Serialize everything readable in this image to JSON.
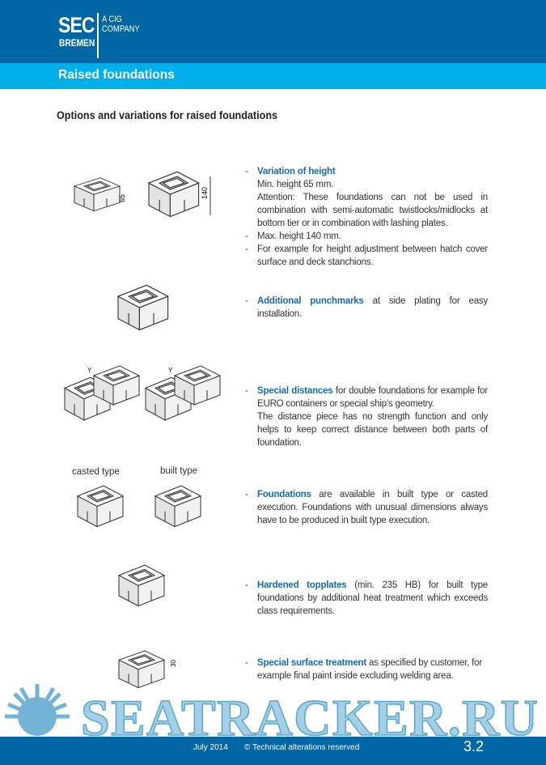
{
  "header": {
    "logo_sec": "SEC",
    "logo_bremen": "BREMEN",
    "logo_cig": [
      "A CIG",
      "COMPANY"
    ],
    "section_title": "Raised foundations"
  },
  "page_title": "Options and variations for raised foundations",
  "figures": {
    "dim_65": "65",
    "dim_140": "140",
    "dim_y": "Y",
    "dim_30": "30",
    "casted_label": "casted type",
    "built_label": "built type"
  },
  "items": [
    {
      "heading": "Variation of height",
      "lines": [
        "Min. height 65 mm.",
        "Attention: These foundations can not be used in combination with semi-automatic twistlocks/midlocks at bottom tier or in combination with lashing plates.",
        "Max. height 140 mm.",
        "For example for height adjustment between hatch cover surface and deck stanchions."
      ]
    },
    {
      "heading": "Additional punchmarks",
      "text": " at side plating for easy installation."
    },
    {
      "heading": "Special distances",
      "text": " for double foundations for example for EURO containers or special ship's geometry.",
      "extra": "The distance piece has no strength function and only helps to keep correct distance between both parts of foundation."
    },
    {
      "heading": "Foundations",
      "text": " are available in built type or casted execution. Foundations with unusual dimensions always have to be produced in built type execution."
    },
    {
      "heading": "Hardened topplates",
      "text": " (min. 235 HB) for built type foundations by additional heat treatment which exceeds class requirements."
    },
    {
      "heading": "Special surface treatment",
      "text": " as specified by customer, for example final paint inside excluding welding area."
    }
  ],
  "watermark": "SEATRACKER.RU",
  "footer": {
    "date": "July 2014",
    "copyright": "© Technical alterations reserved",
    "page": "3.2"
  },
  "colors": {
    "brand_dark": "#0066a4",
    "brand_light": "#00aeea",
    "heading_blue": "#1a6aa8"
  }
}
